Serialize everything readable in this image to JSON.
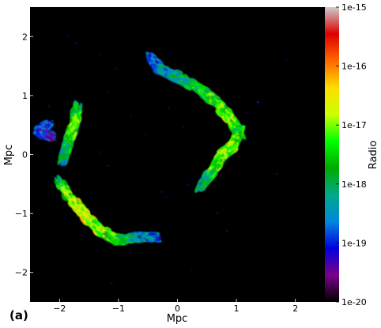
{
  "panel_label": "(a)",
  "chart_data": {
    "type": "heatmap",
    "xlabel": "Mpc",
    "ylabel": "Mpc",
    "xlim": [
      -2.5,
      2.5
    ],
    "ylim": [
      -2.5,
      2.5
    ],
    "x_ticks": [
      -2,
      -1,
      0,
      1,
      2
    ],
    "y_ticks": [
      -2,
      -1,
      0,
      1,
      2
    ],
    "x_tick_labels": [
      "−2",
      "−1",
      "0",
      "1",
      "2"
    ],
    "y_tick_labels": [
      "−2",
      "−1",
      "0",
      "1",
      "2"
    ],
    "colorbar": {
      "label": "Radio",
      "scale": "log",
      "ticks": [
        "1e-20",
        "1e-19",
        "1e-18",
        "1e-17",
        "1e-16",
        "1e-15"
      ],
      "tick_exponents": [
        -20,
        -19,
        -18,
        -17,
        -16,
        -15
      ],
      "colormap": "nipy_spectral",
      "colors": [
        "#000000",
        "#7a008a",
        "#0000dd",
        "#0088dd",
        "#00aa88",
        "#00aa00",
        "#00ff00",
        "#ccff00",
        "#ffdd00",
        "#ff6600",
        "#dd0000",
        "#cccccc"
      ]
    },
    "background_color": "#000000",
    "structures": [
      {
        "name": "upper-right relic",
        "path": [
          [
            -0.45,
            1.65
          ],
          [
            -0.3,
            1.45
          ],
          [
            0.0,
            1.32
          ],
          [
            0.35,
            1.12
          ],
          [
            0.65,
            0.9
          ],
          [
            0.9,
            0.6
          ],
          [
            1.05,
            0.35
          ]
        ],
        "intensity": [
          -19.0,
          -18.6,
          -18.2,
          -17.8,
          -17.4,
          -17.3,
          -17.6
        ]
      },
      {
        "name": "right relic",
        "path": [
          [
            1.05,
            0.4
          ],
          [
            0.95,
            0.15
          ],
          [
            0.75,
            0.0
          ],
          [
            0.65,
            -0.2
          ],
          [
            0.5,
            -0.4
          ],
          [
            0.4,
            -0.55
          ]
        ],
        "intensity": [
          -17.6,
          -17.3,
          -17.0,
          -17.2,
          -17.6,
          -18.2
        ]
      },
      {
        "name": "left relic",
        "path": [
          [
            -1.7,
            0.8
          ],
          [
            -1.75,
            0.5
          ],
          [
            -1.85,
            0.2
          ],
          [
            -1.95,
            -0.1
          ]
        ],
        "intensity": [
          -17.8,
          -17.3,
          -17.5,
          -18.2
        ]
      },
      {
        "name": "lower-left relic",
        "path": [
          [
            -2.0,
            -0.45
          ],
          [
            -1.85,
            -0.7
          ],
          [
            -1.6,
            -1.0
          ],
          [
            -1.3,
            -1.3
          ],
          [
            -1.0,
            -1.45
          ],
          [
            -0.7,
            -1.4
          ],
          [
            -0.35,
            -1.4
          ]
        ],
        "intensity": [
          -18.0,
          -17.2,
          -16.8,
          -17.0,
          -17.4,
          -18.2,
          -18.8
        ]
      },
      {
        "name": "far-left patch",
        "path": [
          [
            -2.2,
            0.5
          ],
          [
            -2.35,
            0.4
          ],
          [
            -2.15,
            0.3
          ]
        ],
        "intensity": [
          -18.6,
          -18.9,
          -19.2
        ]
      }
    ]
  }
}
